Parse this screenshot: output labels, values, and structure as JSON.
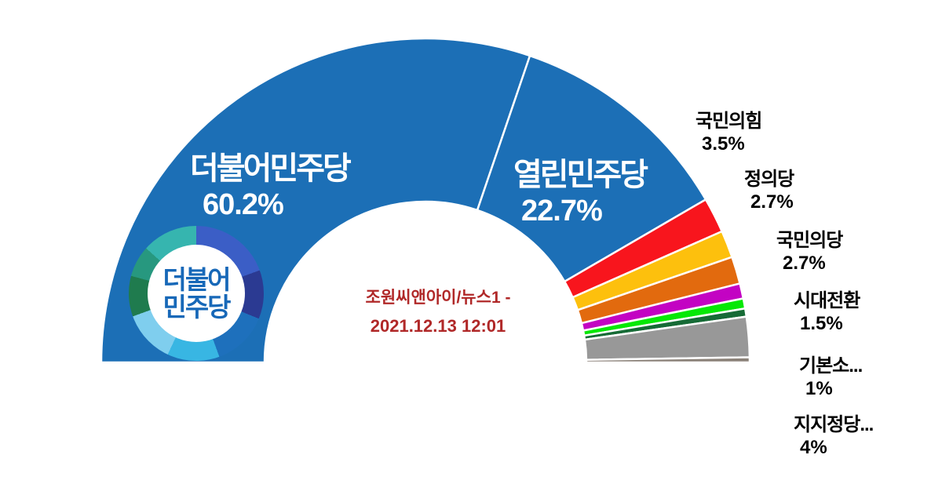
{
  "background_color": "#ffffff",
  "chart_data": {
    "type": "half-donut",
    "orientation": "semicircle-180",
    "legend_position": "labels-right-and-inside",
    "source_note": {
      "line1": "조원씨앤아이/뉴스1 -",
      "line2": "2021.12.13 12:01",
      "color": "#B02828"
    },
    "segments": [
      {
        "label": "더불어민주당",
        "display": "60.2%",
        "value": 60.2,
        "color": "#1C6FB6"
      },
      {
        "label": "열린민주당",
        "display": "22.7%",
        "value": 22.7,
        "color": "#1C6FB6"
      },
      {
        "label": "국민의힘",
        "display": "3.5%",
        "value": 3.5,
        "color": "#F8151D"
      },
      {
        "label": "정의당",
        "display": "2.7%",
        "value": 2.7,
        "color": "#FDC00D"
      },
      {
        "label": "국민의당",
        "display": "2.7%",
        "value": 2.7,
        "color": "#E26A0E"
      },
      {
        "label": "시대전환",
        "display": "1.5%",
        "value": 1.5,
        "color": "#C303C3"
      },
      {
        "label": "기본소...",
        "display": "1%",
        "value": 1.0,
        "color": "#06E806"
      },
      {
        "label": "",
        "display": "",
        "value": 0.8,
        "color": "#166B36"
      },
      {
        "label": "지지정당...",
        "display": "4%",
        "value": 4.0,
        "color": "#989898"
      },
      {
        "label": "",
        "display": "",
        "value": 0.5,
        "color": "#8A8178"
      }
    ]
  },
  "logo": {
    "line1": "더불어",
    "line2": "민주당",
    "text_color": "#1768B8"
  }
}
